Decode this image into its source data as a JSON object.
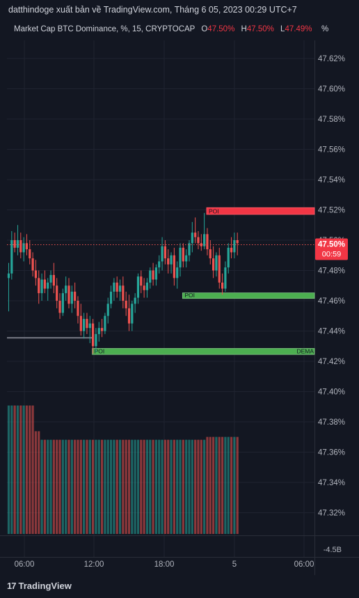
{
  "header": {
    "attribution": "datthindoge xuất bản về TradingView.com, Tháng 6 05, 2023 00:29 UTC+7",
    "symbol": "Market Cap BTC Dominance, %, 15, CRYPTOCAP",
    "o_label": "O",
    "o_value": "47.50%",
    "h_label": "H",
    "h_value": "47.50%",
    "l_label": "L",
    "l_value": "47.49%",
    "scale_unit": "%"
  },
  "footer": {
    "brand": "TradingView",
    "logo_mark": "17"
  },
  "chart_data": {
    "type": "candlestick",
    "x_ticks": [
      "06:00",
      "12:00",
      "18:00",
      "5",
      "06:00"
    ],
    "y_ticks": [
      "47.62%",
      "47.60%",
      "47.58%",
      "47.56%",
      "47.54%",
      "47.52%",
      "47.50%",
      "47.48%",
      "47.46%",
      "47.44%",
      "47.42%",
      "47.40%",
      "47.38%",
      "47.36%",
      "47.34%",
      "47.32%",
      "-4.5B"
    ],
    "ylim": [
      47.3,
      47.64
    ],
    "last_price": {
      "label": "47.50%",
      "countdown": "00:59",
      "value": 47.497
    },
    "zones": [
      {
        "label": "POI",
        "type": "supply",
        "top": 47.5215,
        "bottom": 47.517,
        "from_bar": 66,
        "color": "#f23645"
      },
      {
        "label": "POI",
        "type": "demand",
        "top": 47.4652,
        "bottom": 47.4615,
        "from_bar": 58,
        "color": "#4caf50"
      },
      {
        "label": "POI",
        "type": "demand",
        "top": 47.4285,
        "bottom": 47.4245,
        "from_bar": 28,
        "color": "#4caf50",
        "right_label": "DEMA"
      }
    ],
    "ref_line": {
      "value": 47.4355,
      "to_bar": 28
    },
    "candles": [
      [
        47.475,
        47.485,
        47.453,
        47.478
      ],
      [
        47.478,
        47.506,
        47.474,
        47.5
      ],
      [
        47.5,
        47.505,
        47.492,
        47.495
      ],
      [
        47.495,
        47.51,
        47.49,
        47.5
      ],
      [
        47.5,
        47.505,
        47.488,
        47.492
      ],
      [
        47.492,
        47.502,
        47.486,
        47.498
      ],
      [
        47.498,
        47.504,
        47.49,
        47.494
      ],
      [
        47.494,
        47.5,
        47.484,
        47.488
      ],
      [
        47.488,
        47.492,
        47.476,
        47.48
      ],
      [
        47.48,
        47.487,
        47.47,
        47.475
      ],
      [
        47.475,
        47.48,
        47.458,
        47.465
      ],
      [
        47.465,
        47.478,
        47.46,
        47.474
      ],
      [
        47.474,
        47.48,
        47.465,
        47.468
      ],
      [
        47.468,
        47.475,
        47.46,
        47.472
      ],
      [
        47.472,
        47.48,
        47.468,
        47.477
      ],
      [
        47.477,
        47.485,
        47.465,
        47.47
      ],
      [
        47.47,
        47.475,
        47.455,
        47.46
      ],
      [
        47.46,
        47.465,
        47.448,
        47.452
      ],
      [
        47.452,
        47.468,
        47.45,
        47.465
      ],
      [
        47.465,
        47.476,
        47.46,
        47.47
      ],
      [
        47.47,
        47.475,
        47.455,
        47.458
      ],
      [
        47.458,
        47.47,
        47.452,
        47.466
      ],
      [
        47.466,
        47.472,
        47.455,
        47.46
      ],
      [
        47.46,
        47.463,
        47.445,
        47.45
      ],
      [
        47.45,
        47.458,
        47.437,
        47.44
      ],
      [
        47.44,
        47.452,
        47.435,
        47.448
      ],
      [
        47.448,
        47.452,
        47.438,
        47.442
      ],
      [
        47.442,
        47.45,
        47.432,
        47.445
      ],
      [
        47.445,
        47.448,
        47.425,
        47.43
      ],
      [
        47.43,
        47.442,
        47.426,
        47.438
      ],
      [
        47.438,
        47.446,
        47.433,
        47.442
      ],
      [
        47.442,
        47.448,
        47.436,
        47.44
      ],
      [
        47.44,
        47.452,
        47.438,
        47.45
      ],
      [
        47.45,
        47.462,
        47.445,
        47.458
      ],
      [
        47.458,
        47.47,
        47.455,
        47.466
      ],
      [
        47.466,
        47.475,
        47.46,
        47.472
      ],
      [
        47.472,
        47.476,
        47.462,
        47.466
      ],
      [
        47.466,
        47.474,
        47.46,
        47.47
      ],
      [
        47.47,
        47.476,
        47.455,
        47.46
      ],
      [
        47.46,
        47.466,
        47.45,
        47.455
      ],
      [
        47.455,
        47.464,
        47.44,
        47.445
      ],
      [
        47.445,
        47.46,
        47.44,
        47.458
      ],
      [
        47.458,
        47.465,
        47.452,
        47.462
      ],
      [
        47.462,
        47.478,
        47.458,
        47.476
      ],
      [
        47.476,
        47.48,
        47.465,
        47.47
      ],
      [
        47.47,
        47.475,
        47.462,
        47.467
      ],
      [
        47.467,
        47.475,
        47.462,
        47.472
      ],
      [
        47.472,
        47.482,
        47.468,
        47.48
      ],
      [
        47.48,
        47.485,
        47.47,
        47.474
      ],
      [
        47.474,
        47.484,
        47.47,
        47.482
      ],
      [
        47.482,
        47.49,
        47.478,
        47.486
      ],
      [
        47.486,
        47.502,
        47.48,
        47.496
      ],
      [
        47.496,
        47.5,
        47.484,
        47.488
      ],
      [
        47.488,
        47.494,
        47.478,
        47.484
      ],
      [
        47.484,
        47.492,
        47.478,
        47.49
      ],
      [
        47.49,
        47.495,
        47.47,
        47.475
      ],
      [
        47.475,
        47.486,
        47.468,
        47.482
      ],
      [
        47.482,
        47.498,
        47.476,
        47.495
      ],
      [
        47.495,
        47.498,
        47.482,
        47.486
      ],
      [
        47.486,
        47.494,
        47.482,
        47.49
      ],
      [
        47.49,
        47.5,
        47.486,
        47.498
      ],
      [
        47.498,
        47.512,
        47.492,
        47.505
      ],
      [
        47.505,
        47.515,
        47.498,
        47.502
      ],
      [
        47.502,
        47.506,
        47.494,
        47.498
      ],
      [
        47.498,
        47.504,
        47.493,
        47.496
      ],
      [
        47.496,
        47.518,
        47.494,
        47.504
      ],
      [
        47.504,
        47.508,
        47.49,
        47.494
      ],
      [
        47.494,
        47.5,
        47.484,
        47.488
      ],
      [
        47.488,
        47.496,
        47.475,
        47.48
      ],
      [
        47.48,
        47.492,
        47.476,
        47.49
      ],
      [
        47.49,
        47.495,
        47.468,
        47.472
      ],
      [
        47.472,
        47.478,
        47.464,
        47.468
      ],
      [
        47.468,
        47.486,
        47.466,
        47.482
      ],
      [
        47.482,
        47.498,
        47.478,
        47.495
      ],
      [
        47.495,
        47.502,
        47.488,
        47.492
      ],
      [
        47.492,
        47.505,
        47.488,
        47.5
      ],
      [
        47.5,
        47.505,
        47.49,
        47.498
      ]
    ],
    "volumes": [
      45,
      45,
      45,
      45,
      45,
      45,
      45,
      45,
      45,
      36,
      36,
      33,
      33,
      33,
      33,
      33,
      33,
      33,
      33,
      33,
      33,
      33,
      33,
      33,
      33,
      33,
      33,
      33,
      33,
      33,
      33,
      33,
      33,
      33,
      33,
      33,
      33,
      33,
      33,
      33,
      33,
      33,
      33,
      33,
      33,
      33,
      33,
      33,
      33,
      33,
      33,
      33,
      33,
      33,
      33,
      33,
      33,
      33,
      33,
      33,
      33,
      33,
      33,
      33,
      33,
      33,
      34,
      34,
      34,
      34,
      34,
      34,
      34,
      34,
      34,
      34,
      34
    ]
  }
}
